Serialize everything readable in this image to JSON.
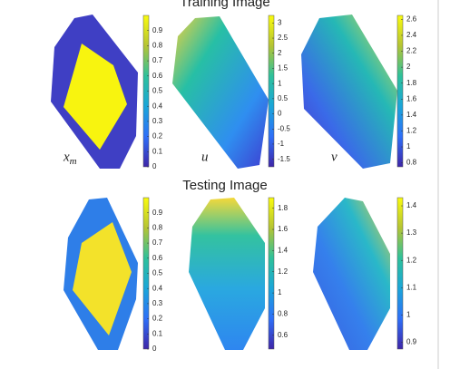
{
  "rows": [
    {
      "title": "Training Image",
      "chart_data": [
        {
          "type": "image",
          "label": "x",
          "label_sub": "m",
          "clim": [
            0,
            1
          ],
          "cticks": [
            0,
            0.1,
            0.2,
            0.3,
            0.4,
            0.5,
            0.6,
            0.7,
            0.8,
            0.9
          ]
        },
        {
          "type": "image",
          "label": "u",
          "clim": [
            -1.75,
            3.25
          ],
          "cticks": [
            -1.5,
            -1,
            -0.5,
            0,
            0.5,
            1,
            1.5,
            2,
            2.5,
            3
          ]
        },
        {
          "type": "image",
          "label": "v",
          "clim": [
            0.75,
            2.65
          ],
          "cticks": [
            0.8,
            1,
            1.2,
            1.4,
            1.6,
            1.8,
            2,
            2.2,
            2.4,
            2.6
          ]
        }
      ]
    },
    {
      "title": "Testing Image",
      "chart_data": [
        {
          "type": "image",
          "clim": [
            0,
            1
          ],
          "cticks": [
            0,
            0.1,
            0.2,
            0.3,
            0.4,
            0.5,
            0.6,
            0.7,
            0.8,
            0.9
          ]
        },
        {
          "type": "image",
          "clim": [
            0.47,
            1.9
          ],
          "cticks": [
            0.6,
            0.8,
            1,
            1.2,
            1.4,
            1.6,
            1.8
          ]
        },
        {
          "type": "image",
          "clim": [
            0.875,
            1.43
          ],
          "cticks": [
            0.9,
            1,
            1.1,
            1.2,
            1.3,
            1.4
          ]
        }
      ]
    }
  ]
}
